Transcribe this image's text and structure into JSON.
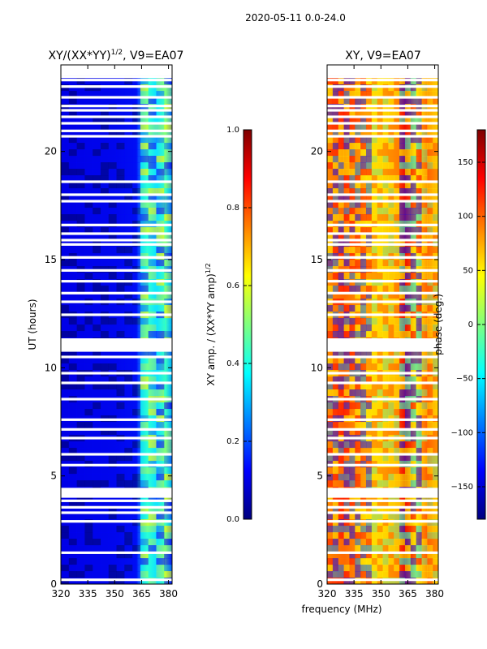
{
  "figure_title": "2020-05-11 0.0-24.0",
  "colors": {
    "jet": [
      "#00007f",
      "#0000ff",
      "#007fff",
      "#00ffff",
      "#7fff7f",
      "#ffff00",
      "#ff7f00",
      "#ff0000",
      "#7f0000"
    ],
    "gap": "#ffffff",
    "axis": "#000000"
  },
  "chart_data": [
    {
      "type": "heatmap",
      "title": "XY/(XX*YY)",
      "title_sup": "1/2",
      "title_suffix": ", V9=EA07",
      "xlabel": "",
      "ylabel": "UT (hours)",
      "xlim": [
        320,
        382
      ],
      "ylim": [
        0,
        24
      ],
      "xticks": [
        320,
        335,
        350,
        365,
        380
      ],
      "yticks": [
        0,
        5,
        10,
        15,
        20
      ],
      "gaps_hours": [
        0.2,
        1.45,
        2.9,
        3.3,
        3.55,
        3.85,
        4.05,
        4.25,
        5.5,
        6.0,
        6.75,
        7.15,
        7.6,
        8.55,
        9.3,
        9.75,
        10.5,
        10.8,
        11.0,
        11.3,
        12.45,
        13.05,
        13.45,
        14.0,
        14.5,
        15.1,
        15.7,
        15.9,
        16.2,
        16.6,
        17.7,
        18.0,
        18.6,
        20.7,
        20.95,
        21.3,
        21.6,
        21.9,
        22.1,
        22.5,
        23.0,
        23.3,
        23.45,
        23.65,
        23.85
      ],
      "colorbar": {
        "label": "XY amp. / (XX*YY amp)",
        "label_sup": "1/2",
        "range": [
          0.0,
          1.0
        ],
        "ticks": [
          "0.0",
          "0.2",
          "0.4",
          "0.6",
          "0.8",
          "1.0"
        ],
        "tick_values": [
          0.0,
          0.2,
          0.4,
          0.6,
          0.8,
          1.0
        ]
      }
    },
    {
      "type": "heatmap",
      "title": "XY, V9=EA07",
      "xlabel": "frequency (MHz)",
      "ylabel": "",
      "xlim": [
        320,
        382
      ],
      "ylim": [
        0,
        24
      ],
      "xticks": [
        320,
        335,
        350,
        365,
        380
      ],
      "yticks": [
        0,
        5,
        10,
        15,
        20
      ],
      "gaps_hours": [
        0.2,
        1.45,
        2.9,
        3.3,
        3.55,
        3.85,
        4.05,
        4.25,
        5.5,
        6.0,
        6.75,
        7.15,
        7.6,
        8.55,
        9.3,
        9.75,
        10.5,
        10.8,
        11.0,
        11.3,
        12.45,
        13.05,
        13.45,
        14.0,
        14.5,
        15.1,
        15.7,
        15.9,
        16.2,
        16.6,
        17.7,
        18.0,
        18.6,
        20.7,
        20.95,
        21.3,
        21.6,
        21.9,
        22.1,
        22.5,
        23.0,
        23.3,
        23.45,
        23.65,
        23.85
      ],
      "colorbar": {
        "label": "phase (deg.)",
        "range": [
          -180,
          180
        ],
        "ticks": [
          "150",
          "100",
          "50",
          "0",
          "−50",
          "−100",
          "−150"
        ],
        "tick_values": [
          150,
          100,
          50,
          0,
          -50,
          -100,
          -150
        ]
      }
    }
  ]
}
